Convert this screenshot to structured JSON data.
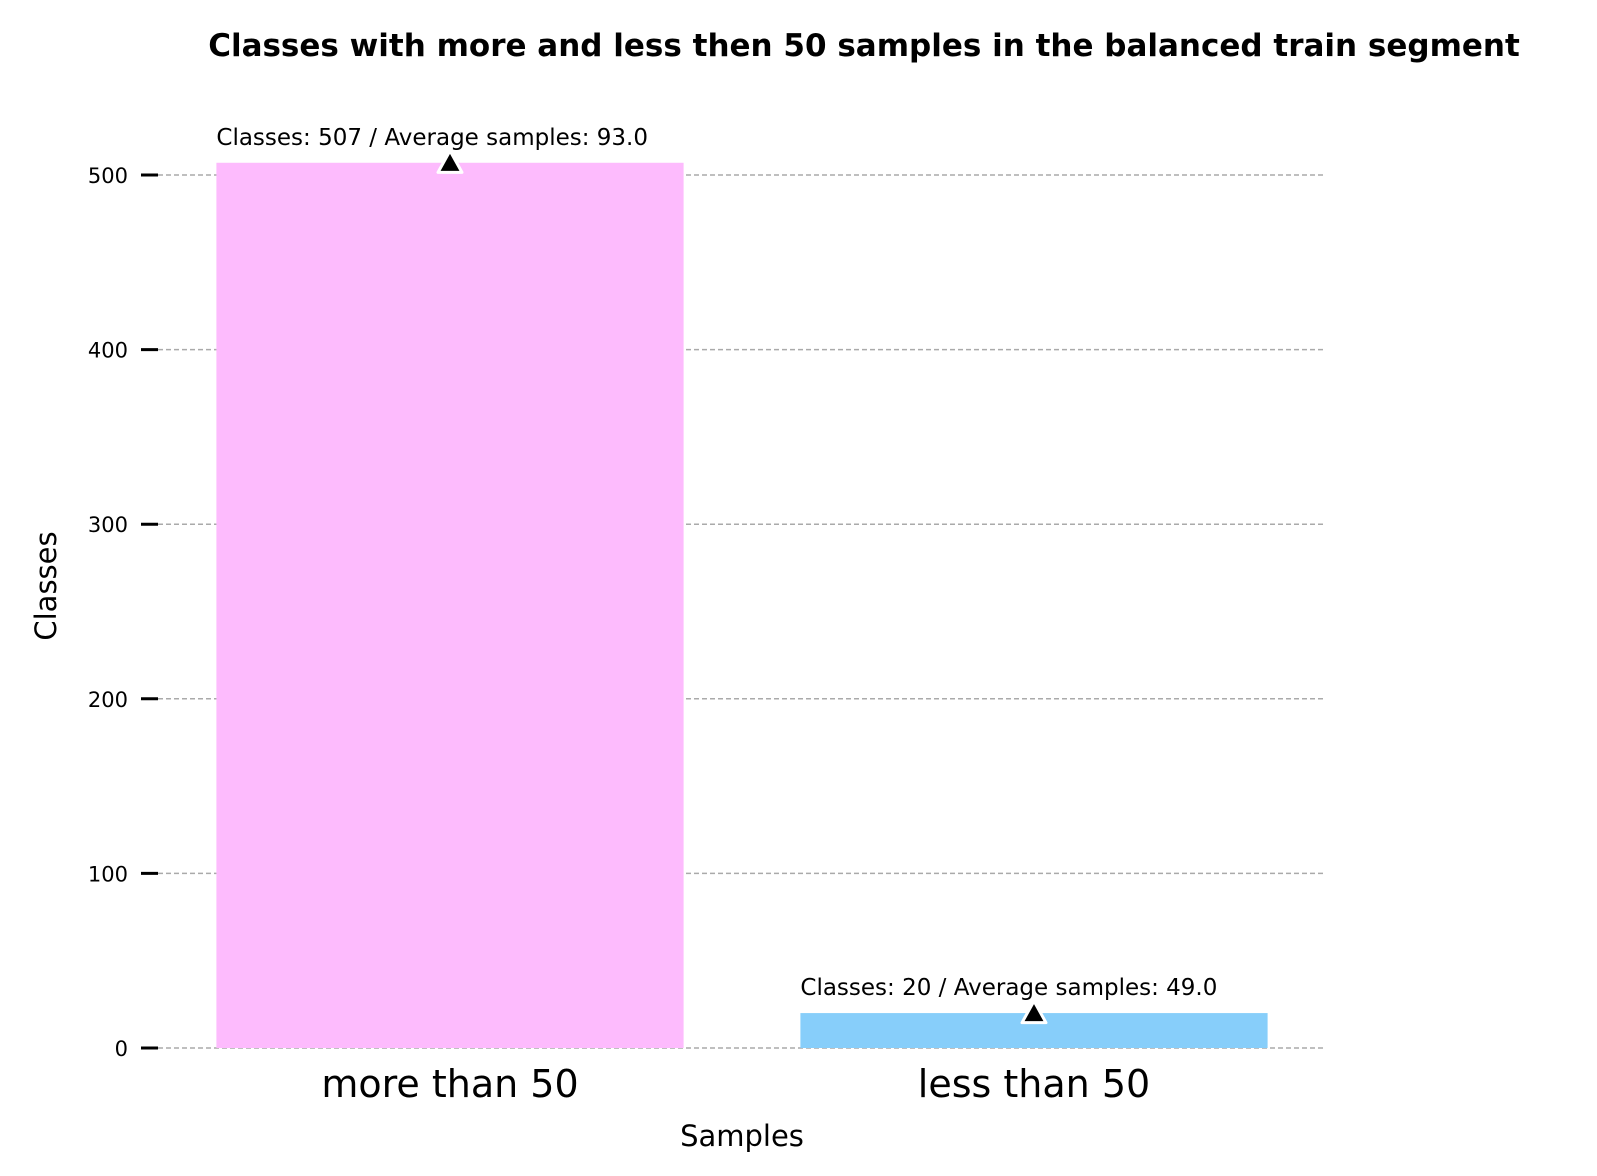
{
  "chart_data": {
    "type": "bar",
    "title": "Classes with more and less then 50 samples in the balanced train segment",
    "xlabel": "Samples",
    "ylabel": "Classes",
    "categories": [
      "more than 50",
      "less than 50"
    ],
    "values": [
      507,
      20
    ],
    "average_samples": [
      93.0,
      49.0
    ],
    "data_labels": [
      "Classes: 507 / Average samples: 93.0",
      "Classes: 20 / Average samples: 49.0"
    ],
    "bar_colors": [
      "#fdbbfd",
      "#87cefa"
    ],
    "marker": "triangle-up",
    "marker_color": "#000000",
    "ylim": [
      0,
      530
    ],
    "yticks": [
      0,
      100,
      200,
      300,
      400,
      500
    ],
    "grid": true,
    "grid_style": "dashed",
    "grid_color": "#aaaaaa"
  }
}
